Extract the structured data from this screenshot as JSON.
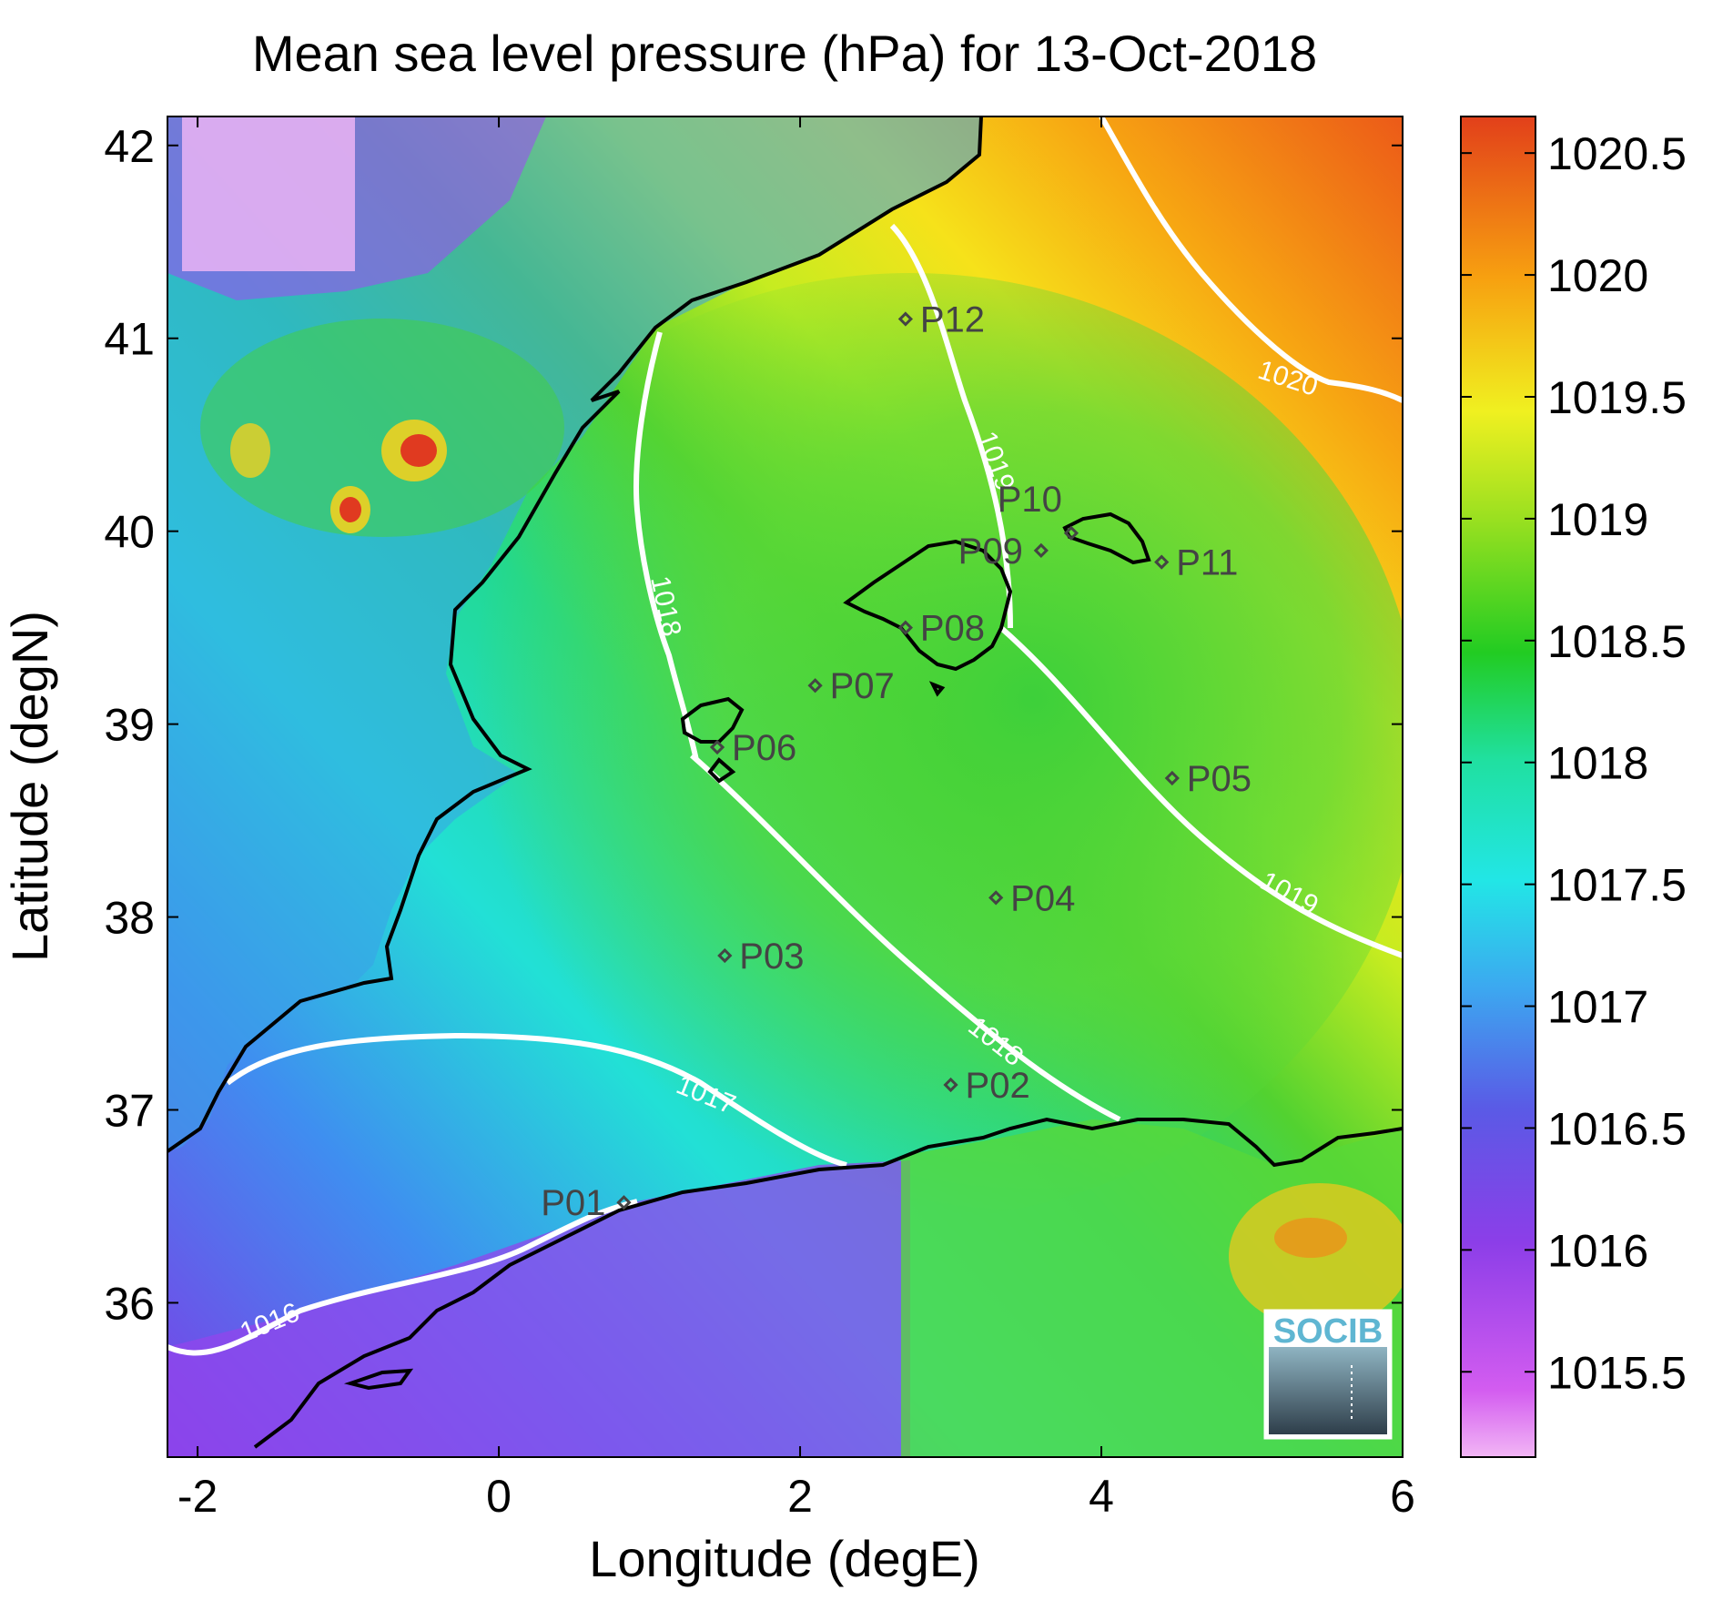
{
  "title": "Mean sea level pressure (hPa) for 13-Oct-2018",
  "x_label": "Longitude (degE)",
  "y_label": "Latitude (degN)",
  "x_ticks": [
    "-2",
    "0",
    "2",
    "4",
    "6"
  ],
  "y_ticks": [
    "42",
    "41",
    "40",
    "39",
    "38",
    "37",
    "36"
  ],
  "colorbar_ticks": [
    "1020.5",
    "1020",
    "1019.5",
    "1019",
    "1018.5",
    "1018",
    "1017.5",
    "1017",
    "1016.5",
    "1016",
    "1015.5"
  ],
  "contour_labels": [
    "1020",
    "1019",
    "1018",
    "1018",
    "1017",
    "1016",
    "1019"
  ],
  "points": [
    {
      "id": "P01",
      "lon": 0.83,
      "lat": 36.52
    },
    {
      "id": "P02",
      "lon": 3.0,
      "lat": 37.13
    },
    {
      "id": "P03",
      "lon": 1.5,
      "lat": 37.8
    },
    {
      "id": "P04",
      "lon": 3.3,
      "lat": 38.1
    },
    {
      "id": "P05",
      "lon": 4.47,
      "lat": 38.72
    },
    {
      "id": "P06",
      "lon": 1.45,
      "lat": 38.88
    },
    {
      "id": "P07",
      "lon": 2.1,
      "lat": 39.2
    },
    {
      "id": "P08",
      "lon": 2.7,
      "lat": 39.5
    },
    {
      "id": "P09",
      "lon": 3.6,
      "lat": 39.9
    },
    {
      "id": "P10",
      "lon": 3.8,
      "lat": 39.99
    },
    {
      "id": "P11",
      "lon": 4.4,
      "lat": 39.84
    },
    {
      "id": "P12",
      "lon": 2.7,
      "lat": 41.1
    }
  ],
  "colors": {
    "contour": "#ffffff",
    "coastline": "#000000",
    "marker": "#444444"
  },
  "logo": {
    "text": "SOCIB"
  }
}
